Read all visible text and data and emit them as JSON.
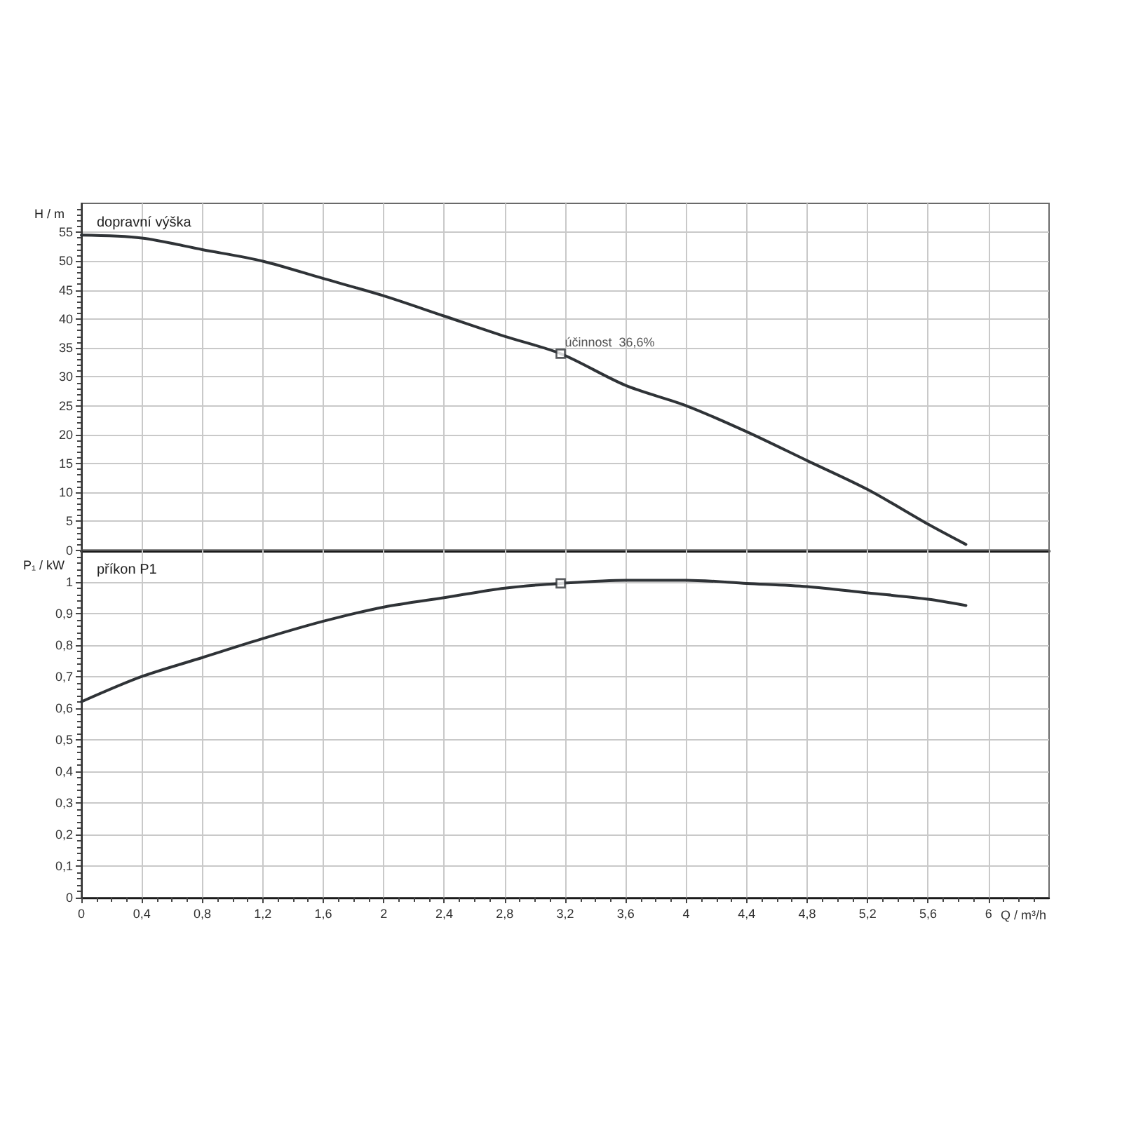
{
  "chart_data": [
    {
      "type": "line",
      "title": "dopravní výška",
      "ylabel": "H / m",
      "xlim": [
        0,
        6.4
      ],
      "xticks": [
        0,
        0.4,
        0.8,
        1.2,
        1.6,
        2,
        2.4,
        2.8,
        3.2,
        3.6,
        4,
        4.4,
        4.8,
        5.2,
        5.6,
        6
      ],
      "ylim": [
        0,
        60
      ],
      "yticks": [
        0,
        5,
        10,
        15,
        20,
        25,
        30,
        35,
        40,
        45,
        50,
        55
      ],
      "grid": true,
      "tick_labels": "y",
      "series": [
        {
          "color": "#2f3337",
          "x": [
            0,
            0.4,
            0.8,
            1.2,
            1.6,
            2.0,
            2.4,
            2.8,
            3.17,
            3.6,
            4.0,
            4.4,
            4.8,
            5.2,
            5.6,
            5.85
          ],
          "values": [
            54.5,
            54,
            52,
            50,
            47,
            44,
            40.5,
            37,
            34,
            28.5,
            25,
            20.5,
            15.5,
            10.5,
            4.5,
            1
          ]
        },
        {
          "type": "scatter",
          "marker": "square",
          "color": "#2f3337",
          "x": [
            3.17
          ],
          "values": [
            34
          ]
        }
      ],
      "annotations": [
        {
          "text": "účinnost  36,6%",
          "x": 3.17,
          "y": 34
        }
      ]
    },
    {
      "type": "line",
      "title": "příkon P1",
      "ylabel": "P₁ / kW",
      "xlabel": "Q / m³/h",
      "xlim": [
        0,
        6.4
      ],
      "xticks": [
        0,
        {
          "value": 0.4,
          "label": "0,4"
        },
        {
          "value": 0.8,
          "label": "0,8"
        },
        {
          "value": 1.2,
          "label": "1,2"
        },
        {
          "value": 1.6,
          "label": "1,6"
        },
        2,
        {
          "value": 2.4,
          "label": "2,4"
        },
        {
          "value": 2.8,
          "label": "2,8"
        },
        {
          "value": 3.2,
          "label": "3,2"
        },
        {
          "value": 3.6,
          "label": "3,6"
        },
        4,
        {
          "value": 4.4,
          "label": "4,4"
        },
        {
          "value": 4.8,
          "label": "4,8"
        },
        {
          "value": 5.2,
          "label": "5,2"
        },
        {
          "value": 5.6,
          "label": "5,6"
        },
        6
      ],
      "ylim": [
        0,
        1.1
      ],
      "yticks": [
        0,
        {
          "value": 0.1,
          "label": "0,1"
        },
        {
          "value": 0.2,
          "label": "0,2"
        },
        {
          "value": 0.3,
          "label": "0,3"
        },
        {
          "value": 0.4,
          "label": "0,4"
        },
        {
          "value": 0.5,
          "label": "0,5"
        },
        {
          "value": 0.6,
          "label": "0,6"
        },
        {
          "value": 0.7,
          "label": "0,7"
        },
        {
          "value": 0.8,
          "label": "0,8"
        },
        {
          "value": 0.9,
          "label": "0,9"
        },
        1
      ],
      "grid": true,
      "series": [
        {
          "color": "#2f3337",
          "x": [
            0,
            0.4,
            0.8,
            1.2,
            1.6,
            2.0,
            2.4,
            2.8,
            3.17,
            3.6,
            4.0,
            4.4,
            4.8,
            5.2,
            5.6,
            5.85
          ],
          "values": [
            0.62,
            0.7,
            0.76,
            0.82,
            0.875,
            0.92,
            0.95,
            0.98,
            0.995,
            1.005,
            1.005,
            0.995,
            0.985,
            0.965,
            0.945,
            0.925
          ]
        },
        {
          "type": "scatter",
          "marker": "square",
          "color": "#2f3337",
          "x": [
            3.17
          ],
          "values": [
            0.995
          ]
        }
      ]
    }
  ]
}
